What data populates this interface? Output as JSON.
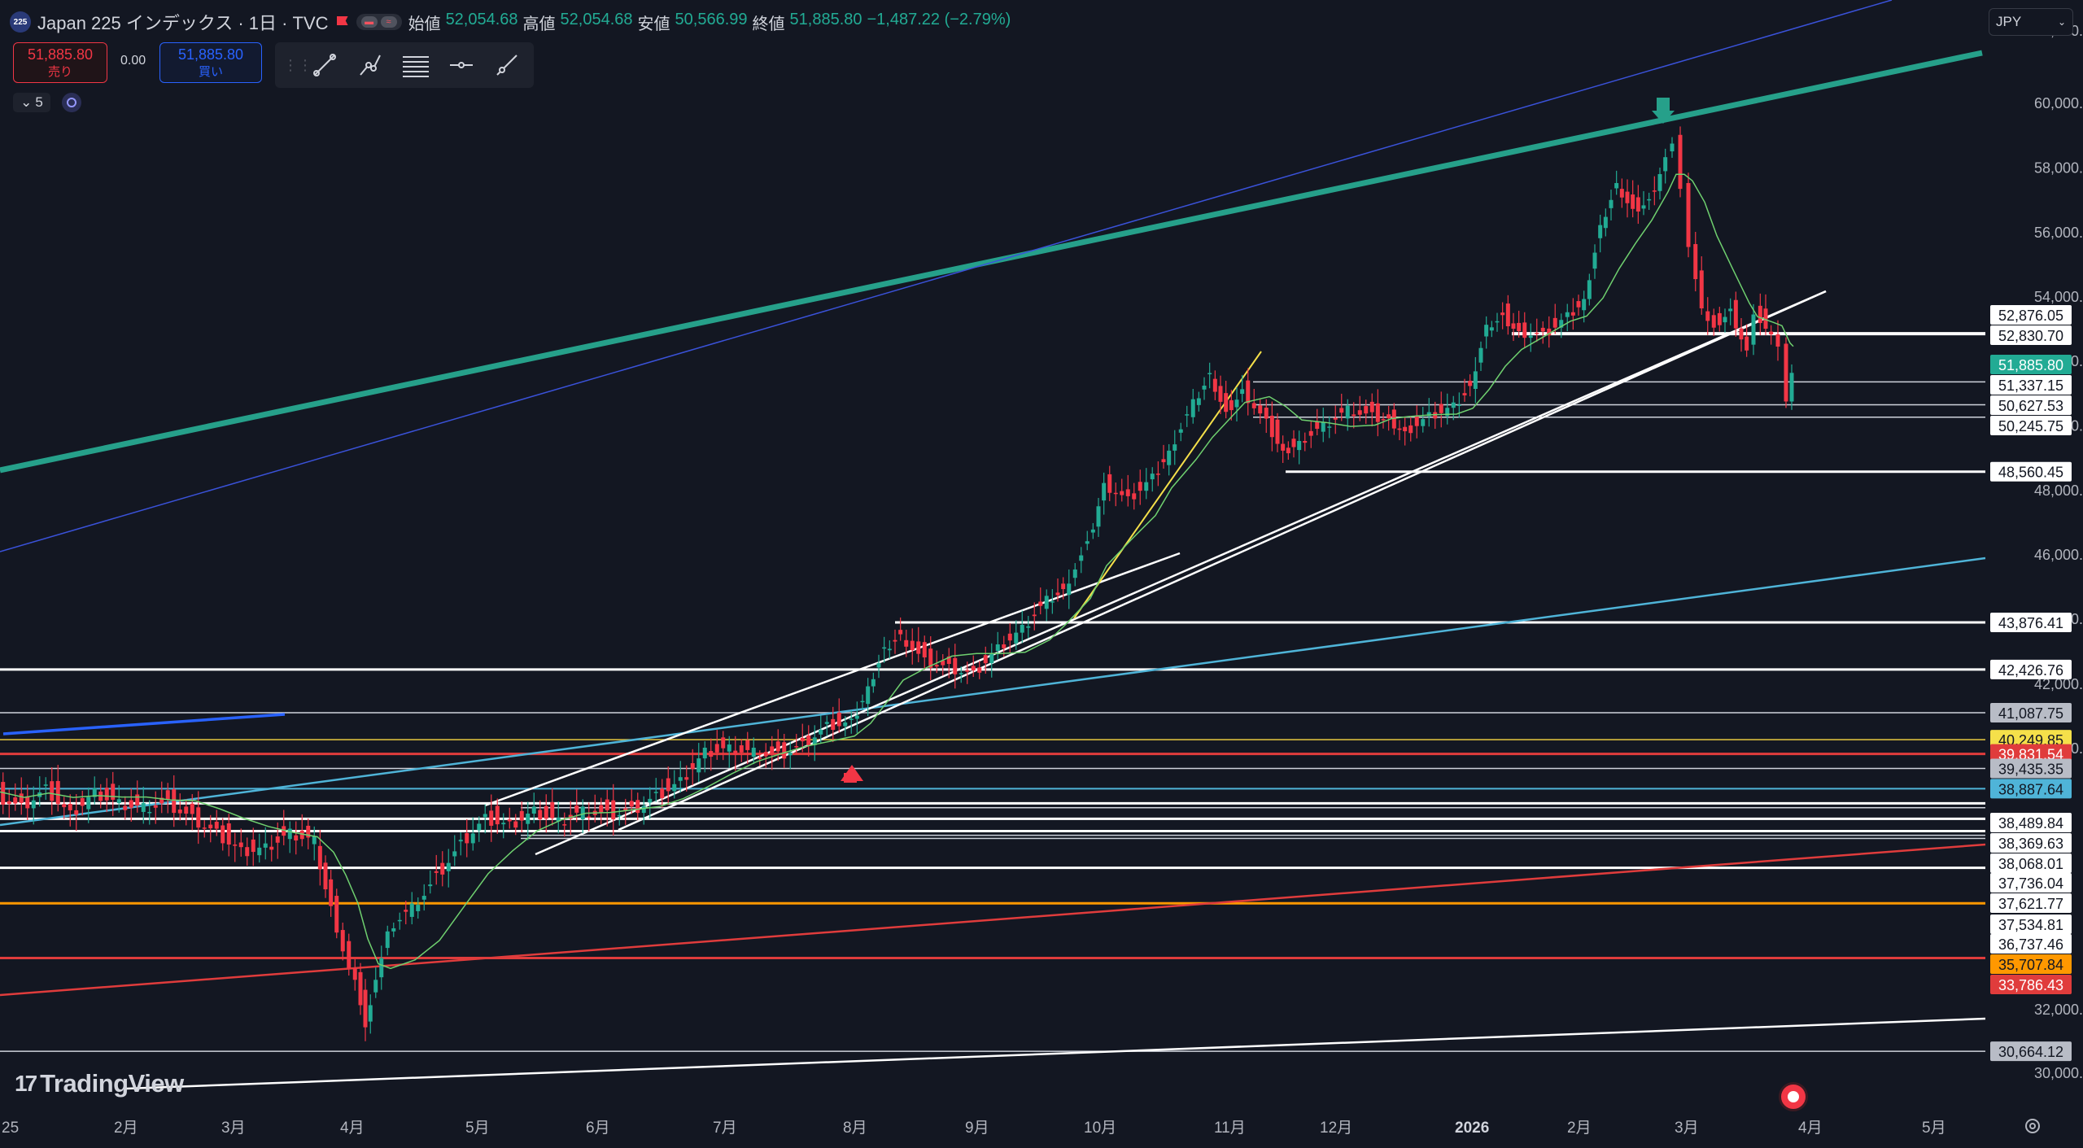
{
  "header": {
    "symbol_badge": "225",
    "title": "Japan 225 インデックス · 1日 · TVC",
    "open_label": "始値",
    "open_value": "52,054.68",
    "high_label": "高値",
    "high_value": "52,054.68",
    "low_label": "安値",
    "low_value": "50,566.99",
    "close_label": "終値",
    "close_value": "51,885.80",
    "change": "−1,487.22 (−2.79%)"
  },
  "trade": {
    "sell_price": "51,885.80",
    "sell_label": "売り",
    "spread": "0.00",
    "buy_price": "51,885.80",
    "buy_label": "買い"
  },
  "interval": {
    "label": "5"
  },
  "currency": {
    "label": "JPY"
  },
  "logo": {
    "text": "TradingView",
    "mark": "17"
  },
  "colors": {
    "background": "#131722",
    "up": "#22ab94",
    "down": "#f23645",
    "teal_trend": "#26a08a",
    "blue_line": "#2962ff",
    "cyan_line": "#4fb4d8",
    "yellow": "#f5e04a",
    "red_line": "#e03c3c",
    "orange_line": "#ff9800",
    "ma_green": "#6fd06f"
  },
  "price_axis": {
    "ticks": [
      "62,000.00",
      "60,000.00",
      "58,000.00",
      "56,000.00",
      "54,000.00",
      "52,000.00",
      "50,000.00",
      "48,000.00",
      "46,000.00",
      "44,000.00",
      "42,000.00",
      "40,000.00",
      "32,000.00",
      "30,000.00"
    ]
  },
  "time_axis": {
    "labels": [
      {
        "t": "25",
        "bold": false
      },
      {
        "t": "2月",
        "bold": false
      },
      {
        "t": "3月",
        "bold": false
      },
      {
        "t": "4月",
        "bold": false
      },
      {
        "t": "5月",
        "bold": false
      },
      {
        "t": "6月",
        "bold": false
      },
      {
        "t": "7月",
        "bold": false
      },
      {
        "t": "8月",
        "bold": false
      },
      {
        "t": "9月",
        "bold": false
      },
      {
        "t": "10月",
        "bold": false
      },
      {
        "t": "11月",
        "bold": false
      },
      {
        "t": "12月",
        "bold": false
      },
      {
        "t": "2026",
        "bold": true
      },
      {
        "t": "2月",
        "bold": false
      },
      {
        "t": "3月",
        "bold": false
      },
      {
        "t": "4月",
        "bold": false
      },
      {
        "t": "5月",
        "bold": false
      }
    ]
  },
  "price_labels": [
    {
      "text": "52,876.05",
      "style": "white"
    },
    {
      "text": "52,830.70",
      "style": "white"
    },
    {
      "text": "51,885.80",
      "style": "current"
    },
    {
      "text": "51,337.15",
      "style": "white"
    },
    {
      "text": "50,627.53",
      "style": "white"
    },
    {
      "text": "50,245.75",
      "style": "white"
    },
    {
      "text": "48,560.45",
      "style": "white"
    },
    {
      "text": "43,876.41",
      "style": "white"
    },
    {
      "text": "42,426.76",
      "style": "white"
    },
    {
      "text": "41,087.75",
      "style": "gray"
    },
    {
      "text": "40,249.85",
      "style": "yellow"
    },
    {
      "text": "39,831.54",
      "style": "red"
    },
    {
      "text": "39,435.35",
      "style": "gray"
    },
    {
      "text": "38,887.64",
      "style": "cyan"
    },
    {
      "text": "38,489.84",
      "style": "white"
    },
    {
      "text": "38,369.63",
      "style": "white"
    },
    {
      "text": "38,068.01",
      "style": "white"
    },
    {
      "text": "37,736.04",
      "style": "white"
    },
    {
      "text": "37,621.77",
      "style": "white"
    },
    {
      "text": "37,534.81",
      "style": "white"
    },
    {
      "text": "36,737.46",
      "style": "white"
    },
    {
      "text": "35,707.84",
      "style": "orange"
    },
    {
      "text": "33,786.43",
      "style": "red"
    },
    {
      "text": "30,664.12",
      "style": "gray"
    }
  ],
  "chart_data": {
    "type": "candlestick",
    "symbol": "Japan 225",
    "x": [
      "2025-01",
      "2025-02",
      "2025-03",
      "2025-04",
      "2025-05",
      "2025-06",
      "2025-07",
      "2025-08",
      "2025-09",
      "2025-10",
      "2025-11",
      "2025-12",
      "2026-01",
      "2026-02",
      "2026-03"
    ],
    "close_approx": [
      38500,
      38500,
      37400,
      35700,
      37500,
      38500,
      40500,
      42400,
      44800,
      50500,
      49500,
      50300,
      53200,
      58500,
      51885.8
    ],
    "last": {
      "open": 52054.68,
      "high": 52054.68,
      "low": 50566.99,
      "close": 51885.8
    }
  }
}
